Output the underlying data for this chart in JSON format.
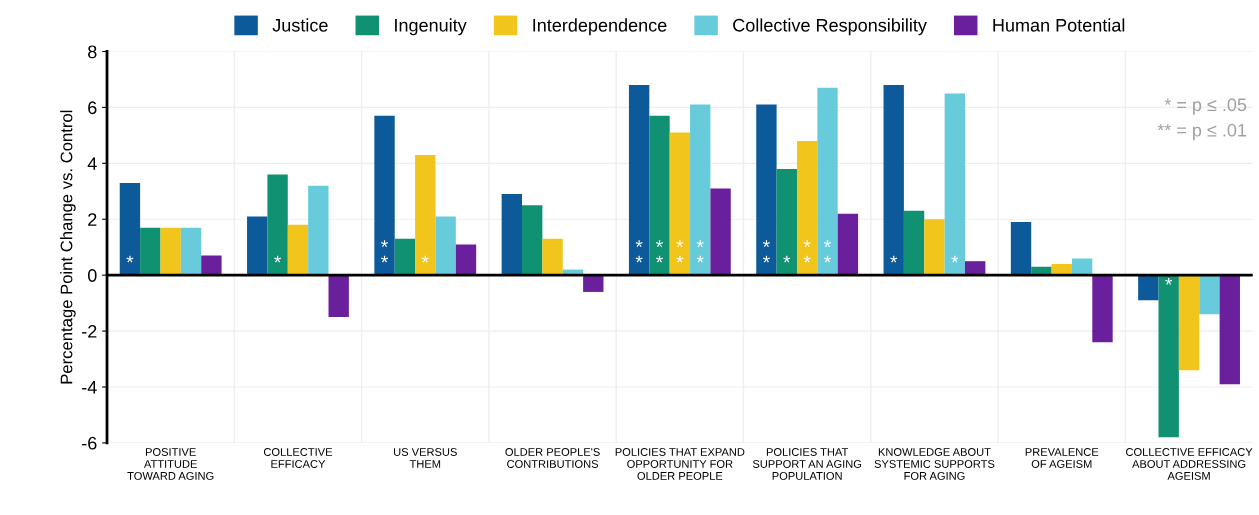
{
  "chart_data": {
    "type": "bar",
    "ylabel": "Percentage Point Change vs. Control",
    "categories": [
      "POSITIVE\nATTITUDE\nTOWARD AGING",
      "COLLECTIVE\nEFFICACY",
      "US VERSUS\nTHEM",
      "OLDER PEOPLE'S\nCONTRIBUTIONS",
      "POLICIES THAT EXPAND\nOPPORTUNITY FOR\nOLDER PEOPLE",
      "POLICIES THAT\nSUPPORT AN AGING\nPOPULATION",
      "KNOWLEDGE ABOUT\nSYSTEMIC SUPPORTS\nFOR AGING",
      "PREVALENCE\nOF AGEISM",
      "COLLECTIVE EFFICACY\nABOUT ADDRESSING\nAGEISM"
    ],
    "series": [
      {
        "name": "Justice",
        "color": "#0d5a9a",
        "values": [
          3.3,
          2.1,
          5.7,
          2.9,
          6.8,
          6.1,
          6.8,
          1.9,
          -0.9
        ],
        "value_labels": [
          "*",
          null,
          "**",
          null,
          "**",
          "**",
          "*",
          null,
          null
        ]
      },
      {
        "name": "Ingenuity",
        "color": "#0f9172",
        "values": [
          1.7,
          3.6,
          1.3,
          2.5,
          5.7,
          3.8,
          2.3,
          0.3,
          -5.8
        ],
        "value_labels": [
          null,
          "*",
          null,
          null,
          "**",
          "*",
          null,
          null,
          "*"
        ]
      },
      {
        "name": "Interdependence",
        "color": "#f1c51c",
        "values": [
          1.7,
          1.8,
          4.3,
          1.3,
          5.1,
          4.8,
          2.0,
          0.4,
          -3.4
        ],
        "value_labels": [
          null,
          null,
          "*",
          null,
          "**",
          "**",
          null,
          null,
          null
        ]
      },
      {
        "name": "Collective Responsibility",
        "color": "#68cbdc",
        "values": [
          1.7,
          3.2,
          2.1,
          0.2,
          6.1,
          6.7,
          6.5,
          0.6,
          -1.4
        ],
        "value_labels": [
          null,
          null,
          null,
          null,
          "**",
          "**",
          "*",
          null,
          null
        ]
      },
      {
        "name": "Human Potential",
        "color": "#6a1f9c",
        "values": [
          0.7,
          -1.5,
          1.1,
          -0.6,
          3.1,
          2.2,
          0.5,
          -2.4,
          -3.9
        ]
      }
    ],
    "ylim": [
      -6,
      8
    ],
    "yticks": [
      -6,
      -4,
      -2,
      0,
      2,
      4,
      6,
      8
    ],
    "grid": true,
    "legend": "top",
    "annotations": [
      "* = p ≤ .05",
      "** = p ≤ .01"
    ]
  }
}
